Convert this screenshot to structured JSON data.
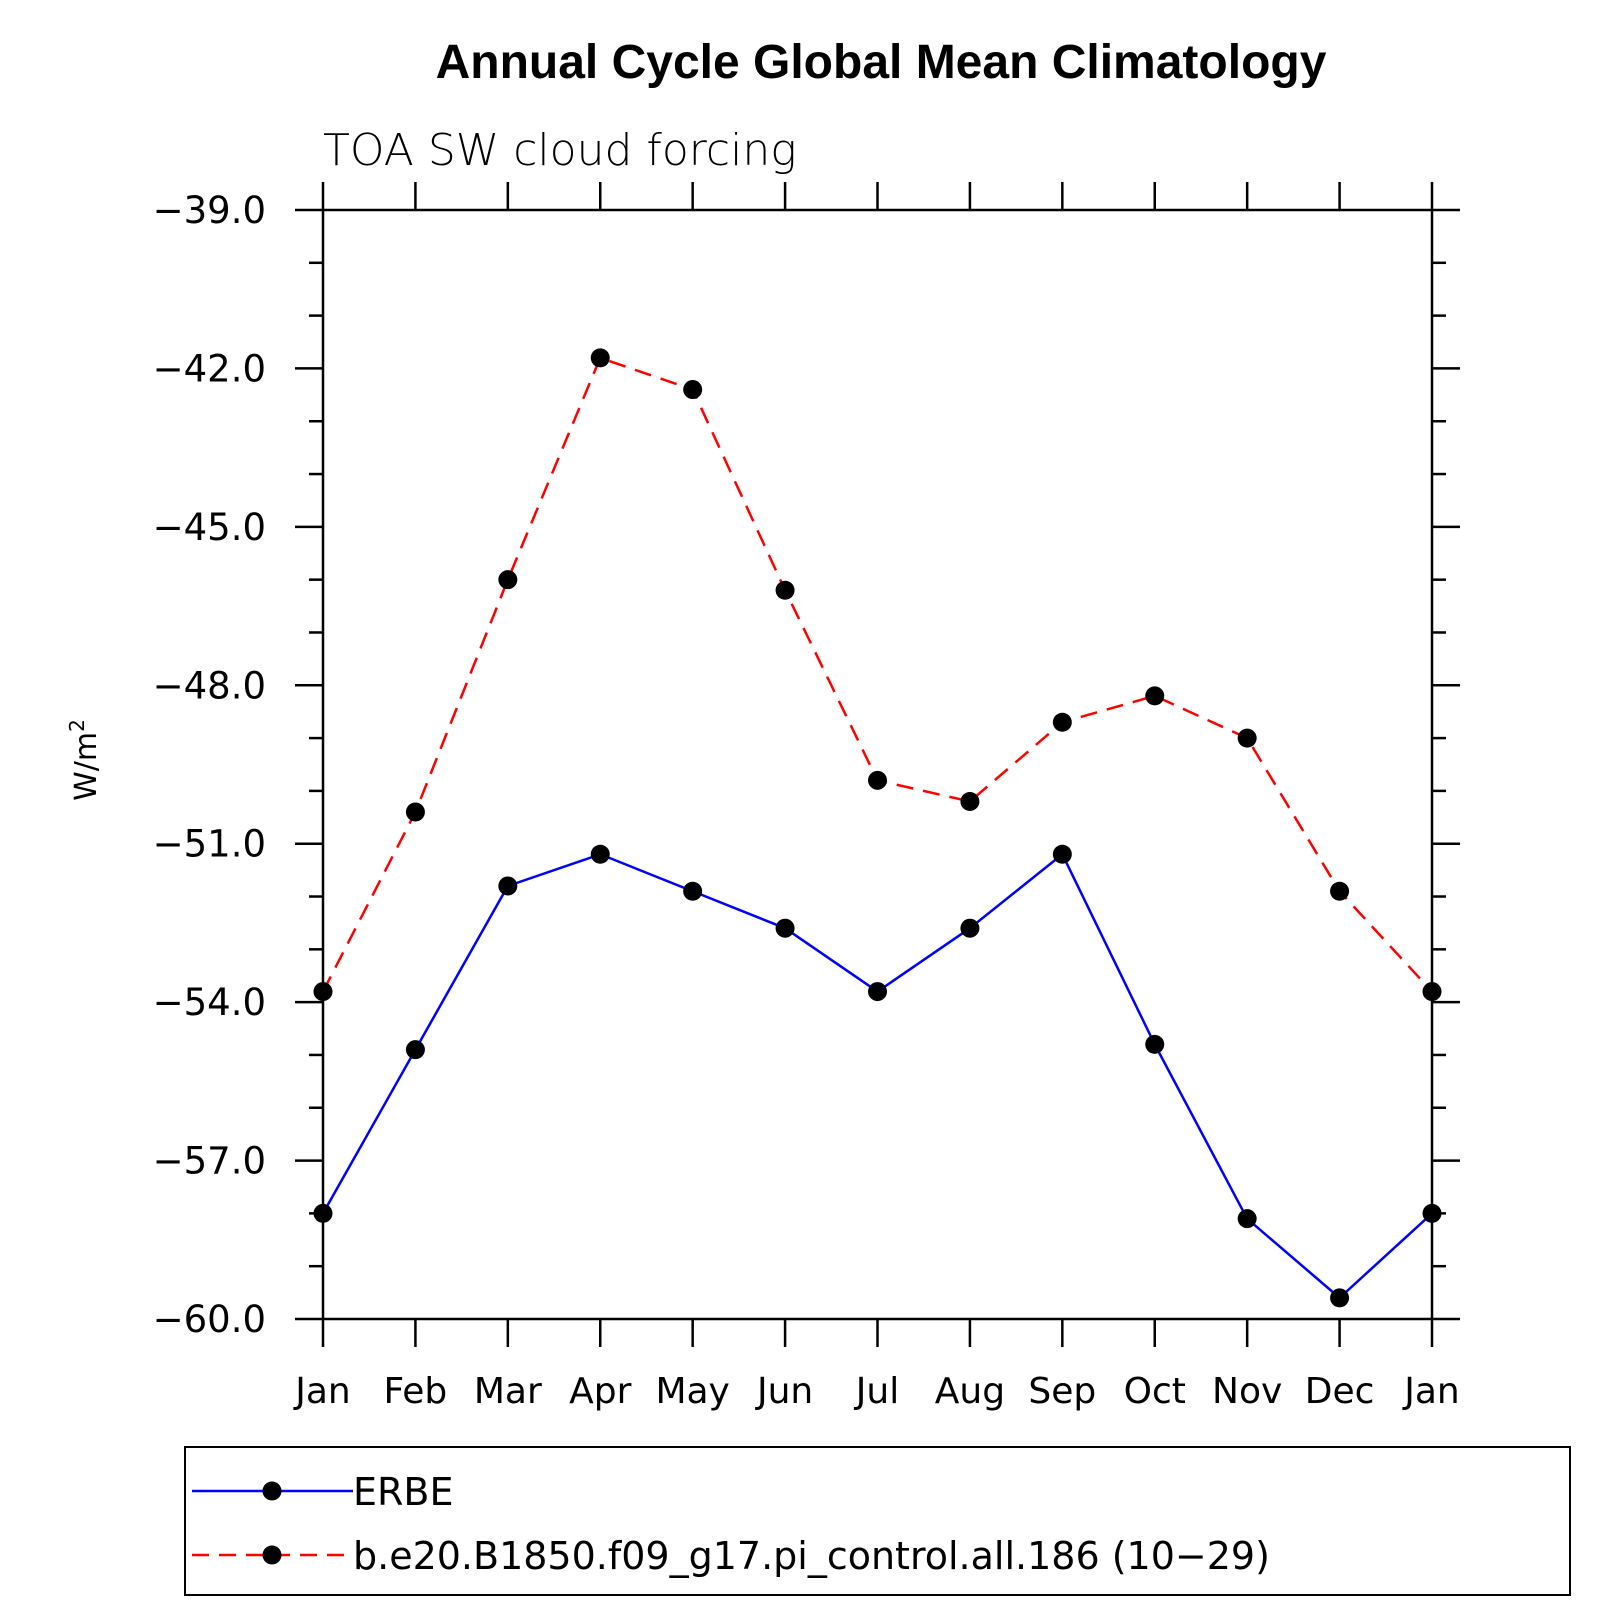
{
  "chart_data": {
    "type": "line",
    "title": "Annual Cycle Global Mean Climatology",
    "subtitle": "TOA SW cloud forcing",
    "ylabel": "W/m",
    "ylabel_superscript": "2",
    "xlabel": "",
    "categories": [
      "Jan",
      "Feb",
      "Mar",
      "Apr",
      "May",
      "Jun",
      "Jul",
      "Aug",
      "Sep",
      "Oct",
      "Nov",
      "Dec",
      "Jan"
    ],
    "ylim": [
      -60.0,
      -39.0
    ],
    "yticks": [
      -39.0,
      -42.0,
      -45.0,
      -48.0,
      -51.0,
      -54.0,
      -57.0,
      -60.0
    ],
    "ytick_labels": [
      "−39.0",
      "−42.0",
      "−45.0",
      "−48.0",
      "−51.0",
      "−54.0",
      "−57.0",
      "−60.0"
    ],
    "grid": false,
    "legend_position": "bottom",
    "series": [
      {
        "name": "ERBE",
        "color": "#0000ff",
        "style": "solid",
        "marker": "filled-circle",
        "values": [
          -58.0,
          -54.9,
          -51.8,
          -51.2,
          -51.9,
          -52.6,
          -53.8,
          -52.6,
          -51.2,
          -54.8,
          -58.1,
          -59.6,
          -58.0
        ]
      },
      {
        "name": "b.e20.B1850.f09_g17.pi_control.all.186 (10−29)",
        "color": "#ff0000",
        "style": "dashed",
        "marker": "filled-circle",
        "values": [
          -53.8,
          -50.4,
          -46.0,
          -41.8,
          -42.4,
          -46.2,
          -49.8,
          -50.2,
          -48.7,
          -48.2,
          -49.0,
          -51.9,
          -53.8
        ]
      }
    ]
  }
}
